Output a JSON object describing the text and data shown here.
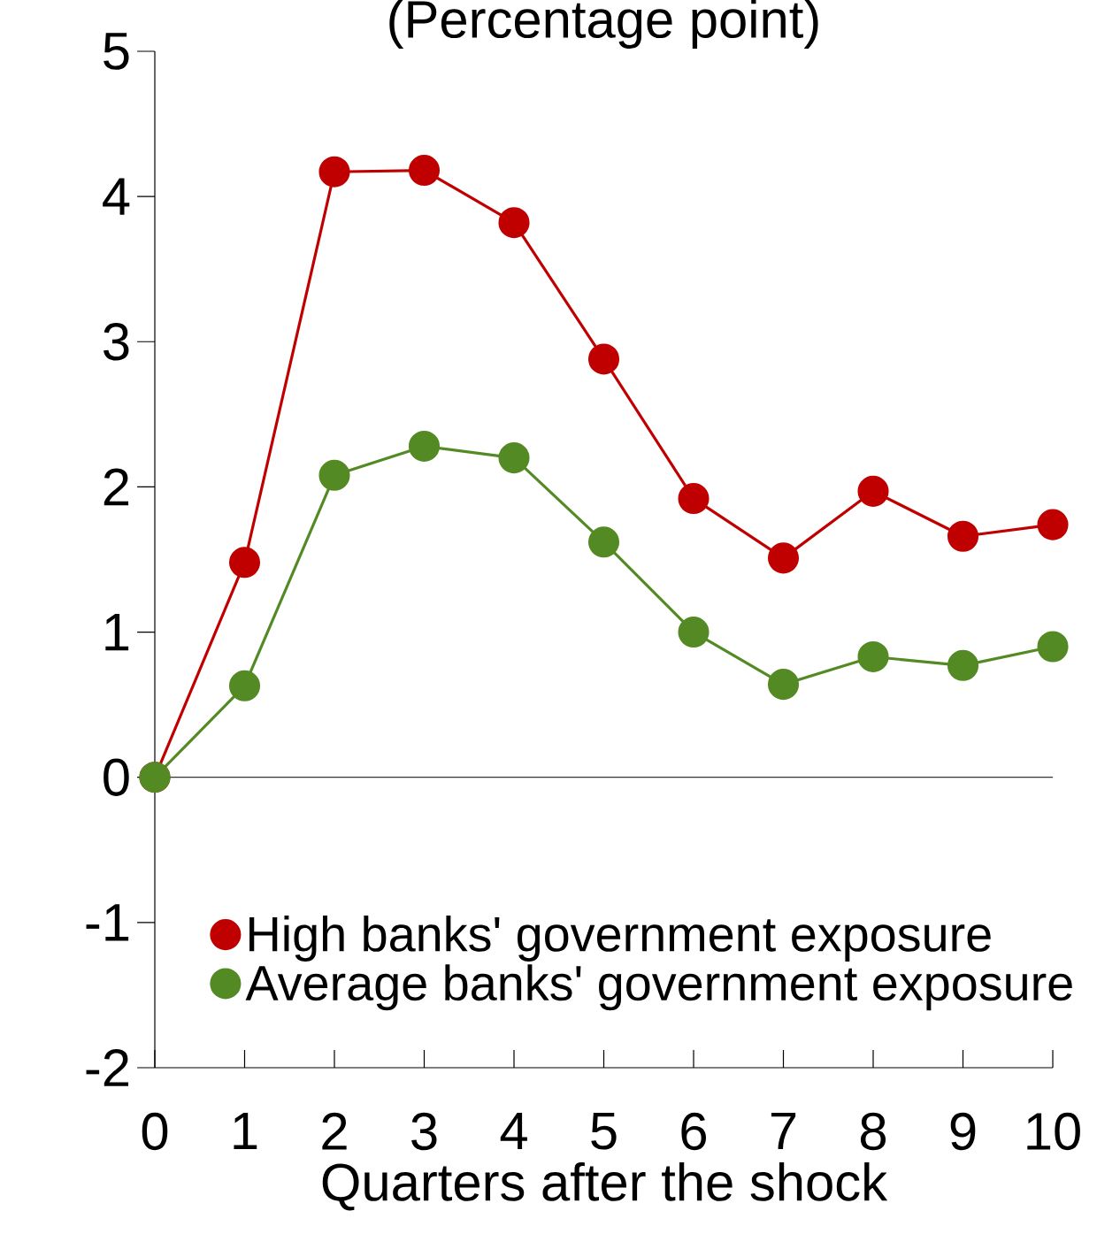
{
  "chart_data": {
    "type": "line",
    "title": "(Percentage point)",
    "xlabel": "Quarters after the shock",
    "x": [
      0,
      1,
      2,
      3,
      4,
      5,
      6,
      7,
      8,
      9,
      10
    ],
    "series": [
      {
        "name": "High banks' government exposure",
        "color": "#c00000",
        "values": [
          0,
          1.48,
          4.17,
          4.18,
          3.82,
          2.88,
          1.92,
          1.51,
          1.97,
          1.66,
          1.74
        ]
      },
      {
        "name": "Average banks' government exposure",
        "color": "#538a24",
        "values": [
          0,
          0.63,
          2.08,
          2.28,
          2.2,
          1.62,
          1.0,
          0.64,
          0.83,
          0.77,
          0.9
        ]
      }
    ],
    "xlim": [
      0,
      10
    ],
    "xticks": [
      0,
      1,
      2,
      3,
      4,
      5,
      6,
      7,
      8,
      9,
      10
    ],
    "ylim": [
      -2,
      5
    ],
    "yticks": [
      -2,
      -1,
      0,
      1,
      2,
      3,
      4,
      5
    ],
    "ref_lines": [
      {
        "axis": "y",
        "value": 0
      }
    ],
    "legend": "bottom",
    "marker": "circle",
    "line_style": "solid",
    "grid": false
  }
}
